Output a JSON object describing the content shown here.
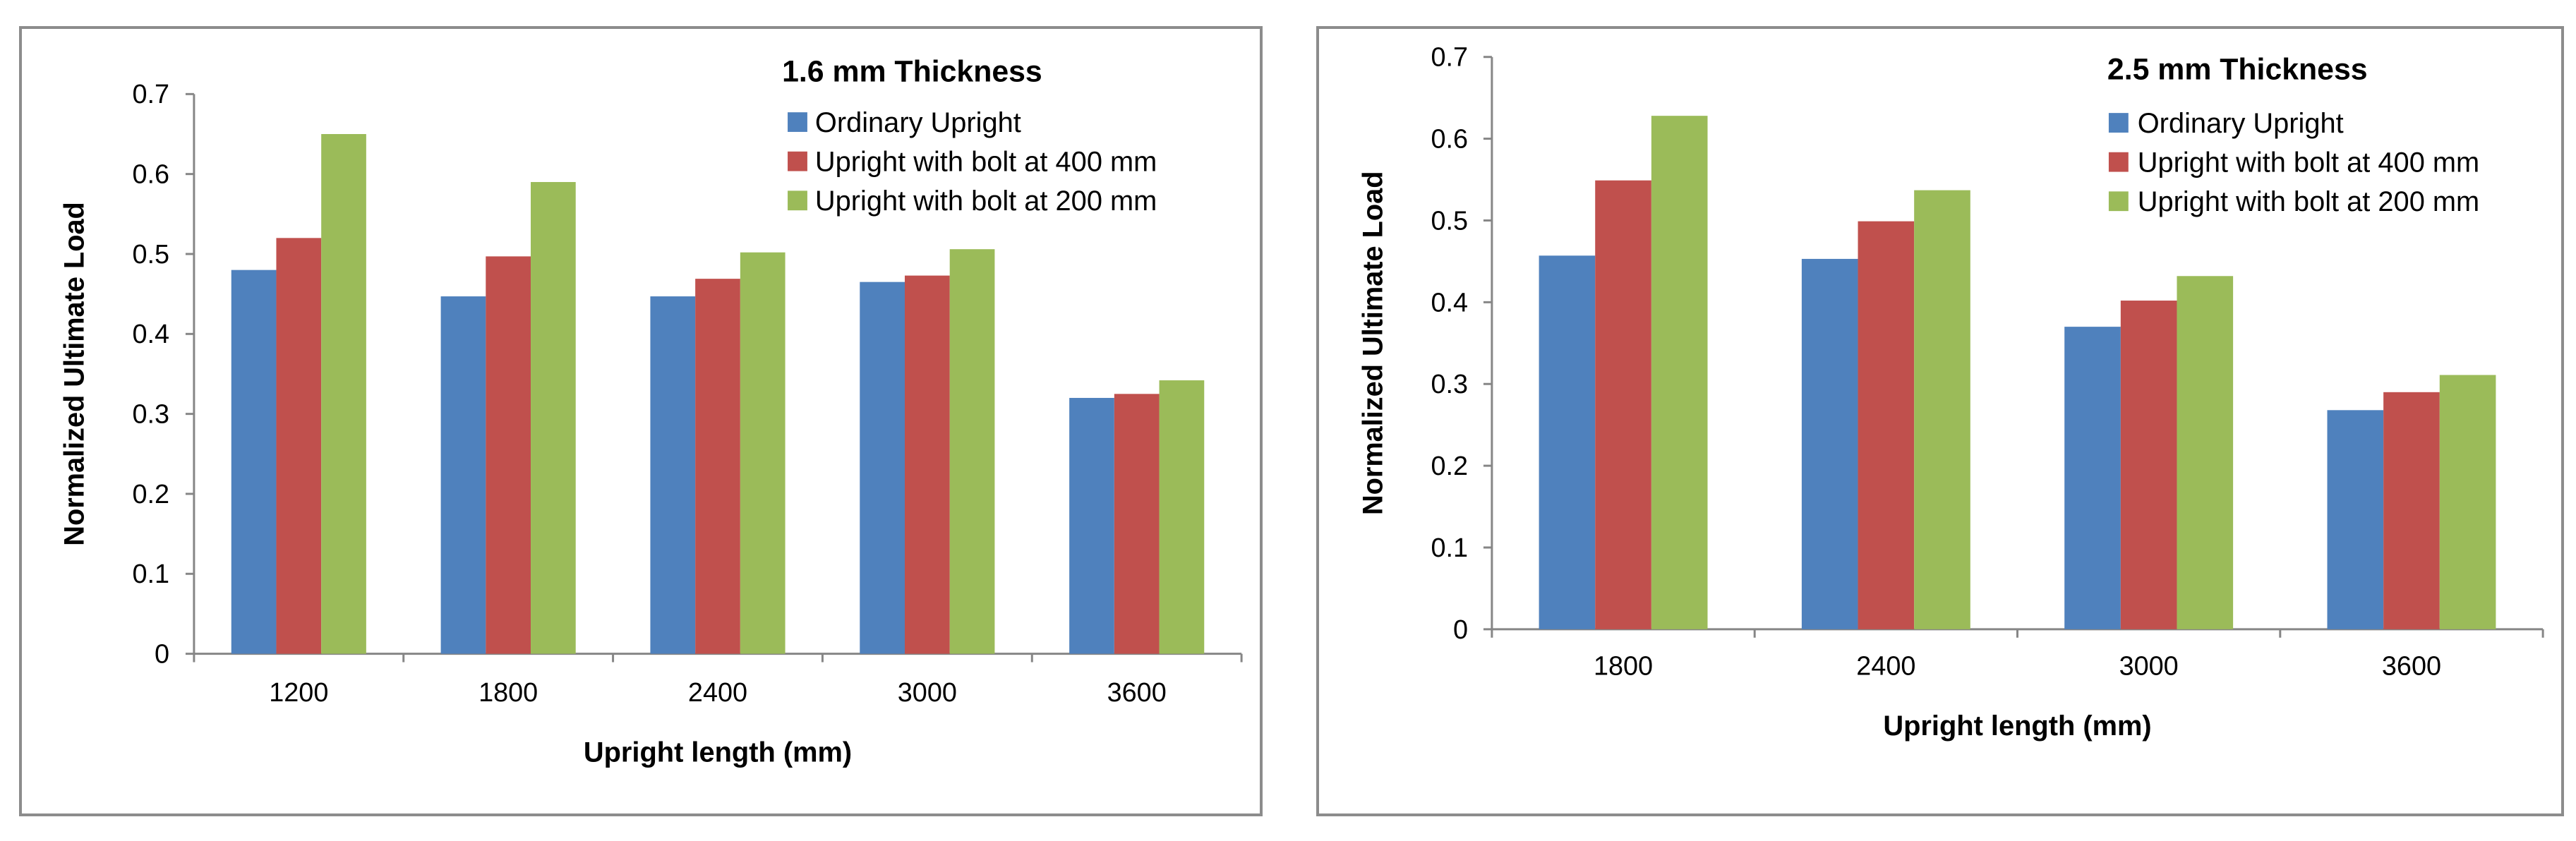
{
  "chart_data": [
    {
      "type": "bar",
      "title": "1.6  mm Thickness",
      "xlabel": "Upright length (mm)",
      "ylabel": "Normalized  Ultimate Load",
      "categories": [
        "1200",
        "1800",
        "2400",
        "3000",
        "3600"
      ],
      "series": [
        {
          "name": "Ordinary Upright",
          "color": "#4f81bd",
          "values": [
            0.48,
            0.447,
            0.447,
            0.465,
            0.32
          ]
        },
        {
          "name": "Upright with bolt at 400 mm",
          "color": "#c0504d",
          "values": [
            0.52,
            0.497,
            0.469,
            0.473,
            0.325
          ]
        },
        {
          "name": "Upright with bolt at 200 mm",
          "color": "#9bbb59",
          "values": [
            0.65,
            0.59,
            0.502,
            0.506,
            0.342
          ]
        }
      ],
      "ylim": [
        0,
        0.7
      ],
      "yticks": [
        "0",
        "0.1",
        "0.2",
        "0.3",
        "0.4",
        "0.5",
        "0.6",
        "0.7"
      ],
      "grid": false,
      "legend": "top-right"
    },
    {
      "type": "bar",
      "title": "2.5 mm Thickness",
      "xlabel": "Upright length (mm)",
      "ylabel": "Normalized Ultimate Load",
      "categories": [
        "1800",
        "2400",
        "3000",
        "3600"
      ],
      "series": [
        {
          "name": "Ordinary Upright",
          "color": "#4f81bd",
          "values": [
            0.457,
            0.453,
            0.37,
            0.268
          ]
        },
        {
          "name": "Upright with bolt at 400 mm",
          "color": "#c0504d",
          "values": [
            0.549,
            0.499,
            0.402,
            0.29
          ]
        },
        {
          "name": "Upright with bolt at 200 mm",
          "color": "#9bbb59",
          "values": [
            0.628,
            0.537,
            0.432,
            0.311
          ]
        }
      ],
      "ylim": [
        0,
        0.7
      ],
      "yticks": [
        "0",
        "0.1",
        "0.2",
        "0.3",
        "0.4",
        "0.5",
        "0.6",
        "0.7"
      ],
      "grid": false,
      "legend": "top-right"
    }
  ]
}
